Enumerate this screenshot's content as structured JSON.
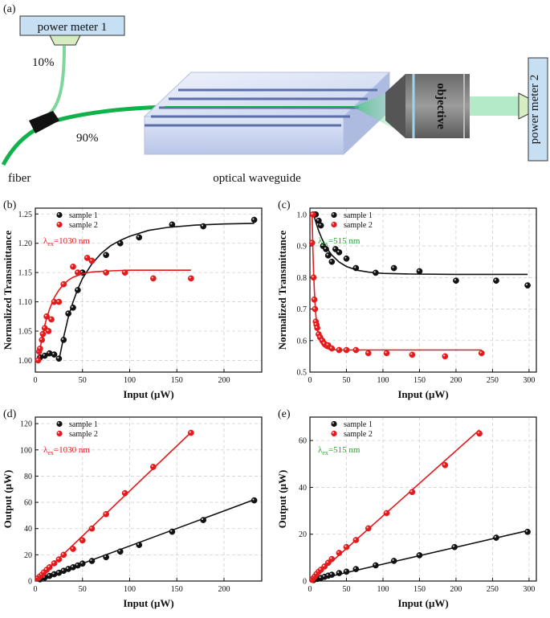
{
  "schematic": {
    "panel_label": "(a)",
    "power_meter_1": "power meter 1",
    "power_meter_2": "power meter 2",
    "split_10": "10%",
    "split_90": "90%",
    "fiber": "fiber",
    "waveguide": "optical waveguide",
    "objective": "objective",
    "colors": {
      "box": "#c7dff3",
      "fiber": "#12b24b",
      "split_fiber": "#7fd69b",
      "beam": "#a8e6c0"
    }
  },
  "chart_data": [
    {
      "id": "b",
      "panel_label": "(b)",
      "type": "scatter",
      "xlabel": "Input (μW)",
      "ylabel": "Normalized Transmittance",
      "xlim": [
        0,
        240
      ],
      "ylim": [
        0.98,
        1.26
      ],
      "xticks": [
        0,
        50,
        100,
        150,
        200
      ],
      "yticks": [
        1.0,
        1.05,
        1.1,
        1.15,
        1.2,
        1.25
      ],
      "ytick_decimals": 2,
      "annotation": {
        "symbol": "λ",
        "sub": "ex",
        "text": "=1030 nm",
        "color": "#e41a1c"
      },
      "series": [
        {
          "name": "sample 1",
          "color": "#111111",
          "x": [
            5,
            10,
            15,
            20,
            25,
            30,
            35,
            40,
            45,
            50,
            60,
            75,
            90,
            110,
            145,
            178,
            232
          ],
          "y": [
            1.005,
            1.008,
            1.012,
            1.01,
            1.003,
            1.035,
            1.08,
            1.09,
            1.12,
            1.15,
            1.17,
            1.18,
            1.2,
            1.21,
            1.232,
            1.229,
            1.24
          ],
          "fit_x": [
            25,
            30,
            35,
            40,
            45,
            50,
            60,
            70,
            80,
            90,
            100,
            120,
            140,
            170,
            200,
            232
          ],
          "fit_y": [
            1.0,
            1.04,
            1.074,
            1.1,
            1.122,
            1.14,
            1.165,
            1.183,
            1.196,
            1.205,
            1.212,
            1.222,
            1.227,
            1.231,
            1.233,
            1.234
          ]
        },
        {
          "name": "sample 2",
          "color": "#e41a1c",
          "x": [
            3,
            4,
            5,
            7,
            8,
            10,
            12,
            14,
            17,
            20,
            25,
            30,
            40,
            45,
            55,
            60,
            75,
            95,
            125,
            165
          ],
          "y": [
            1.0,
            1.015,
            1.02,
            1.035,
            1.045,
            1.055,
            1.075,
            1.05,
            1.07,
            1.1,
            1.1,
            1.13,
            1.16,
            1.15,
            1.175,
            1.17,
            1.15,
            1.15,
            1.14,
            1.14
          ],
          "fit_x": [
            3,
            5,
            8,
            10,
            12,
            15,
            20,
            25,
            30,
            35,
            40,
            50,
            60,
            80,
            100,
            130,
            165
          ],
          "fit_y": [
            1.0,
            1.02,
            1.045,
            1.06,
            1.072,
            1.087,
            1.107,
            1.12,
            1.13,
            1.137,
            1.142,
            1.148,
            1.151,
            1.153,
            1.154,
            1.154,
            1.154
          ]
        }
      ]
    },
    {
      "id": "c",
      "panel_label": "(c)",
      "type": "scatter",
      "xlabel": "Input (μW)",
      "ylabel": "Normalized Transmittance",
      "xlim": [
        0,
        310
      ],
      "ylim": [
        0.5,
        1.02
      ],
      "xticks": [
        0,
        50,
        100,
        150,
        200,
        250,
        300
      ],
      "yticks": [
        0.5,
        0.6,
        0.7,
        0.8,
        0.9,
        1.0
      ],
      "ytick_decimals": 1,
      "annotation": {
        "symbol": "λ",
        "sub": "ex",
        "text": "=515 nm",
        "color": "#2ca02c"
      },
      "series": [
        {
          "name": "sample 1",
          "color": "#111111",
          "x": [
            5,
            8,
            12,
            15,
            18,
            22,
            25,
            30,
            35,
            40,
            50,
            63,
            90,
            115,
            150,
            200,
            255,
            298
          ],
          "y": [
            1.0,
            1.0,
            0.98,
            0.965,
            0.9,
            0.89,
            0.87,
            0.85,
            0.89,
            0.88,
            0.86,
            0.83,
            0.815,
            0.83,
            0.82,
            0.79,
            0.79,
            0.775
          ],
          "fit_x": [
            5,
            8,
            12,
            16,
            20,
            25,
            30,
            40,
            50,
            65,
            80,
            100,
            140,
            200,
            250,
            298
          ],
          "fit_y": [
            1.0,
            0.976,
            0.948,
            0.925,
            0.906,
            0.887,
            0.871,
            0.849,
            0.835,
            0.823,
            0.817,
            0.813,
            0.811,
            0.81,
            0.81,
            0.81
          ]
        },
        {
          "name": "sample 2",
          "color": "#e41a1c",
          "x": [
            3,
            4,
            5,
            6,
            7,
            8,
            9,
            10,
            12,
            14,
            17,
            20,
            25,
            30,
            40,
            50,
            63,
            80,
            105,
            140,
            185,
            235
          ],
          "y": [
            0.91,
            1.0,
            0.8,
            0.73,
            0.7,
            0.66,
            0.65,
            0.64,
            0.62,
            0.61,
            0.6,
            0.59,
            0.585,
            0.575,
            0.57,
            0.57,
            0.57,
            0.56,
            0.56,
            0.555,
            0.55,
            0.56
          ],
          "fit_x": [
            3,
            4,
            5,
            6,
            7,
            8,
            10,
            12,
            15,
            18,
            22,
            26,
            30,
            40,
            60,
            100,
            150,
            235
          ],
          "fit_y": [
            1.0,
            0.9,
            0.82,
            0.76,
            0.717,
            0.683,
            0.638,
            0.613,
            0.594,
            0.583,
            0.576,
            0.573,
            0.571,
            0.57,
            0.57,
            0.57,
            0.57,
            0.57
          ]
        }
      ]
    },
    {
      "id": "d",
      "panel_label": "(d)",
      "type": "scatter",
      "xlabel": "Input (μW)",
      "ylabel": "Output (μW)",
      "xlim": [
        0,
        240
      ],
      "ylim": [
        0,
        125
      ],
      "xticks": [
        0,
        50,
        100,
        150,
        200
      ],
      "yticks": [
        0,
        20,
        40,
        60,
        80,
        100,
        120
      ],
      "ytick_decimals": 0,
      "annotation": {
        "symbol": "λ",
        "sub": "ex",
        "text": "=1030 nm",
        "color": "#e41a1c"
      },
      "series": [
        {
          "name": "sample 1",
          "color": "#111111",
          "x": [
            5,
            10,
            15,
            20,
            25,
            30,
            35,
            40,
            45,
            50,
            60,
            75,
            90,
            110,
            145,
            178,
            232
          ],
          "y": [
            1.3,
            2.6,
            3.9,
            5.2,
            6.3,
            7.8,
            9.2,
            10.5,
            11.9,
            13.3,
            15.3,
            18.2,
            22.5,
            27.5,
            37.6,
            46.5,
            61.5
          ],
          "fit_x": [
            0,
            232
          ],
          "fit_y": [
            0,
            62
          ]
        },
        {
          "name": "sample 2",
          "color": "#e41a1c",
          "x": [
            3,
            5,
            7,
            9,
            12,
            15,
            20,
            25,
            30,
            40,
            50,
            60,
            75,
            95,
            125,
            165
          ],
          "y": [
            2.3,
            3.6,
            4.8,
            6.5,
            8.5,
            10.5,
            13.5,
            16.5,
            20.0,
            24.5,
            31.0,
            40.0,
            51.0,
            67.0,
            87.0,
            113.0
          ],
          "fit_x": [
            0,
            166
          ],
          "fit_y": [
            0,
            114
          ]
        }
      ]
    },
    {
      "id": "e",
      "panel_label": "(e)",
      "type": "scatter",
      "xlabel": "Input (μW)",
      "ylabel": "Output (μW)",
      "xlim": [
        0,
        310
      ],
      "ylim": [
        0,
        70
      ],
      "xticks": [
        0,
        50,
        100,
        150,
        200,
        250,
        300
      ],
      "yticks": [
        0,
        20,
        40,
        60
      ],
      "ytick_decimals": 0,
      "annotation": {
        "symbol": "λ",
        "sub": "ex",
        "text": "=515 nm",
        "color": "#2ca02c"
      },
      "series": [
        {
          "name": "sample 1",
          "color": "#111111",
          "x": [
            5,
            10,
            15,
            20,
            25,
            30,
            40,
            50,
            63,
            90,
            115,
            150,
            198,
            255,
            298
          ],
          "y": [
            0.4,
            0.9,
            1.3,
            1.8,
            2.3,
            2.7,
            3.4,
            4.0,
            5.1,
            6.7,
            8.6,
            11.0,
            14.5,
            18.5,
            21.0
          ],
          "fit_x": [
            0,
            298
          ],
          "fit_y": [
            0,
            21.5
          ]
        },
        {
          "name": "sample 2",
          "color": "#e41a1c",
          "x": [
            3,
            5,
            7,
            9,
            12,
            15,
            20,
            25,
            30,
            40,
            50,
            63,
            80,
            105,
            140,
            185,
            232
          ],
          "y": [
            0.5,
            1.3,
            2.0,
            3.0,
            4.0,
            4.8,
            6.2,
            7.8,
            9.4,
            12.0,
            14.5,
            17.5,
            22.5,
            29.0,
            38.0,
            49.5,
            63.0
          ],
          "fit_x": [
            0,
            232
          ],
          "fit_y": [
            0,
            64.5
          ]
        }
      ]
    }
  ]
}
